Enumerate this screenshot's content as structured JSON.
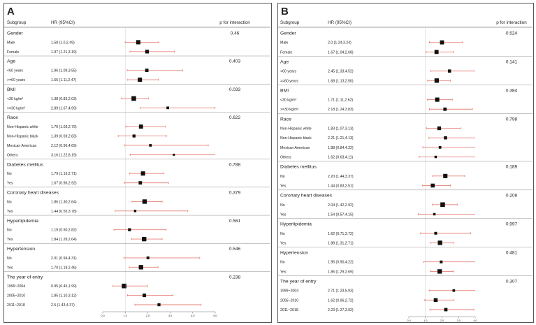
{
  "chart_data": [
    {
      "type": "forest",
      "panel_label": "A",
      "headers": {
        "subgroup": "Subgroup",
        "hr": "HR (95%CI)",
        "p": "p for interaction"
      },
      "x_ticks": [
        "0.0",
        "1.0",
        "2.0",
        "3.0",
        "4.0",
        "5.0"
      ],
      "xlim": [
        0,
        5
      ],
      "reference_line": 1.0,
      "groups": [
        {
          "title": "Gender",
          "p": "0.46",
          "rows": [
            {
              "label": "Male",
              "hr_text": "1.58 (1.0,2.49)",
              "hr": 1.58,
              "lo": 1.0,
              "hi": 2.49,
              "weight": 0.9
            },
            {
              "label": "Female",
              "hr_text": "1.97 (1.21,3.19)",
              "hr": 1.97,
              "lo": 1.21,
              "hi": 3.19,
              "weight": 0.75
            }
          ]
        },
        {
          "title": "Age",
          "p": "0.403",
          "rows": [
            {
              "label": "<60 years",
              "hr_text": "1.96 (1.09,3.55)",
              "hr": 1.96,
              "lo": 1.09,
              "hi": 3.55,
              "weight": 0.65
            },
            {
              "label": ">=60 years",
              "hr_text": "1.65 (1.11,2.47)",
              "hr": 1.65,
              "lo": 1.11,
              "hi": 2.47,
              "weight": 0.9
            }
          ]
        },
        {
          "title": "BMI",
          "p": "0.033",
          "rows": [
            {
              "label": "<30 kg/m²",
              "hr_text": "1.38 (0.83,2.03)",
              "hr": 1.38,
              "lo": 0.83,
              "hi": 2.03,
              "weight": 1.0
            },
            {
              "label": ">=30 kg/m²",
              "hr_text": "2.89 (1.67,4.99)",
              "hr": 2.89,
              "lo": 1.67,
              "hi": 4.99,
              "weight": 0.45
            }
          ]
        },
        {
          "title": "Race",
          "p": "0.622",
          "rows": [
            {
              "label": "Non-Hispanic white",
              "hr_text": "1.70 (1.03,2.79)",
              "hr": 1.7,
              "lo": 1.03,
              "hi": 2.79,
              "weight": 0.85
            },
            {
              "label": "Non-Hispanic black",
              "hr_text": "1.39 (0.69,2.83)",
              "hr": 1.39,
              "lo": 0.69,
              "hi": 2.83,
              "weight": 0.55
            },
            {
              "label": "Mexican American",
              "hr_text": "2.12 (0.96,4.69)",
              "hr": 2.12,
              "lo": 0.96,
              "hi": 4.69,
              "weight": 0.45
            },
            {
              "label": "Others",
              "hr_text": "3.16 (1.22,8.19)",
              "hr": 3.16,
              "lo": 1.22,
              "hi": 8.19,
              "weight": 0.3
            }
          ]
        },
        {
          "title": "Diabetes mellitus",
          "p": "0.788",
          "rows": [
            {
              "label": "No",
              "hr_text": "1.79 (1.19,2.71)",
              "hr": 1.79,
              "lo": 1.19,
              "hi": 2.71,
              "weight": 0.9
            },
            {
              "label": "Yes",
              "hr_text": "1.67 (0.96,2.92)",
              "hr": 1.67,
              "lo": 0.96,
              "hi": 2.92,
              "weight": 0.65
            }
          ]
        },
        {
          "title": "Coronary heart diseases",
          "p": "0.379",
          "rows": [
            {
              "label": "No",
              "hr_text": "1.86 (1.30,2.64)",
              "hr": 1.86,
              "lo": 1.3,
              "hi": 2.64,
              "weight": 0.95
            },
            {
              "label": "Yes",
              "hr_text": "1.44 (0.55,3.78)",
              "hr": 1.44,
              "lo": 0.55,
              "hi": 3.78,
              "weight": 0.4
            }
          ]
        },
        {
          "title": "Hyperlipidemia",
          "p": "0.561",
          "rows": [
            {
              "label": "No",
              "hr_text": "1.19 (0.50,2.82)",
              "hr": 1.19,
              "lo": 0.5,
              "hi": 2.82,
              "weight": 0.55
            },
            {
              "label": "Yes",
              "hr_text": "1.84 (1.28,2.64)",
              "hr": 1.84,
              "lo": 1.28,
              "hi": 2.64,
              "weight": 0.95
            }
          ]
        },
        {
          "title": "Hypertension",
          "p": "0.546",
          "rows": [
            {
              "label": "No",
              "hr_text": "2.01 (0.94,4.31)",
              "hr": 2.01,
              "lo": 0.94,
              "hi": 4.31,
              "weight": 0.5
            },
            {
              "label": "Yes",
              "hr_text": "1.70 (1.18,2.46)",
              "hr": 1.7,
              "lo": 1.18,
              "hi": 2.46,
              "weight": 0.95
            }
          ]
        },
        {
          "title": "The year of entry",
          "p": "0.238",
          "rows": [
            {
              "label": "1999~2004",
              "hr_text": "0.95 (0.45,1.99)",
              "hr": 0.95,
              "lo": 0.45,
              "hi": 1.99,
              "weight": 1.0
            },
            {
              "label": "2005~2010",
              "hr_text": "1.85 (1.10,3.12)",
              "hr": 1.85,
              "lo": 1.1,
              "hi": 3.12,
              "weight": 0.7
            },
            {
              "label": "2011~2018",
              "hr_text": "2.5 (1.43,4.37)",
              "hr": 2.5,
              "lo": 1.43,
              "hi": 4.37,
              "weight": 0.55
            }
          ]
        }
      ]
    },
    {
      "type": "forest",
      "panel_label": "B",
      "headers": {
        "subgroup": "Subgroup",
        "hr": "HR (95%CI)",
        "p": "p for interaction"
      },
      "x_ticks": [
        "0.0",
        "1.0",
        "2.0",
        "3.0",
        "4.0"
      ],
      "xlim": [
        0,
        4
      ],
      "reference_line": 1.0,
      "groups": [
        {
          "title": "Gender",
          "p": "0.524",
          "rows": [
            {
              "label": "Male",
              "hr_text": "2.0 (1.24,3.24)",
              "hr": 2.0,
              "lo": 1.24,
              "hi": 3.24,
              "weight": 0.85
            },
            {
              "label": "Female",
              "hr_text": "1.67 (1.04,2.68)",
              "hr": 1.67,
              "lo": 1.04,
              "hi": 2.68,
              "weight": 0.85
            }
          ]
        },
        {
          "title": "Age",
          "p": "0.141",
          "rows": [
            {
              "label": "<60 years",
              "hr_text": "2.45 (1.33,4.52)",
              "hr": 2.45,
              "lo": 1.33,
              "hi": 4.52,
              "weight": 0.6
            },
            {
              "label": ">=60 years",
              "hr_text": "1.68 (1.13,2.50)",
              "hr": 1.68,
              "lo": 1.13,
              "hi": 2.5,
              "weight": 0.95
            }
          ]
        },
        {
          "title": "BMI",
          "p": "0.384",
          "rows": [
            {
              "label": "<30 kg/m²",
              "hr_text": "1.71 (1.11,2.62)",
              "hr": 1.71,
              "lo": 1.11,
              "hi": 2.62,
              "weight": 0.9
            },
            {
              "label": ">=30 kg/m²",
              "hr_text": "2.18 (1.24,3.83)",
              "hr": 2.18,
              "lo": 1.24,
              "hi": 3.83,
              "weight": 0.65
            }
          ]
        },
        {
          "title": "Race",
          "p": "0.798",
          "rows": [
            {
              "label": "Non-Hispanic white",
              "hr_text": "1.83 (1.07,3.13)",
              "hr": 1.83,
              "lo": 1.07,
              "hi": 3.13,
              "weight": 0.75
            },
            {
              "label": "Non-Hispanic black",
              "hr_text": "2.21 (1.21,4.13)",
              "hr": 2.21,
              "lo": 1.21,
              "hi": 4.13,
              "weight": 0.6
            },
            {
              "label": "Mexican American",
              "hr_text": "1.88 (0.84,4.22)",
              "hr": 1.88,
              "lo": 0.84,
              "hi": 4.22,
              "weight": 0.45
            },
            {
              "label": "Others",
              "hr_text": "1.62 (0.63,4.11)",
              "hr": 1.62,
              "lo": 0.63,
              "hi": 4.11,
              "weight": 0.4
            }
          ]
        },
        {
          "title": "Diabetes mellitus",
          "p": "0.189",
          "rows": [
            {
              "label": "No",
              "hr_text": "2.20 (1.44,3.37)",
              "hr": 2.2,
              "lo": 1.44,
              "hi": 3.37,
              "weight": 0.9
            },
            {
              "label": "Yes",
              "hr_text": "1.44 (0.83,2.51)",
              "hr": 1.44,
              "lo": 0.83,
              "hi": 2.51,
              "weight": 0.8
            }
          ]
        },
        {
          "title": "Coronary heart diseases",
          "p": "0.208",
          "rows": [
            {
              "label": "No",
              "hr_text": "2.04 (1.42,2.92)",
              "hr": 2.04,
              "lo": 1.42,
              "hi": 2.92,
              "weight": 1.0
            },
            {
              "label": "Yes",
              "hr_text": "1.54 (0.57,4.15)",
              "hr": 1.54,
              "lo": 0.57,
              "hi": 4.15,
              "weight": 0.4
            }
          ]
        },
        {
          "title": "Hyperlipidemia",
          "p": "0.997",
          "rows": [
            {
              "label": "No",
              "hr_text": "1.62 (0.71,3.72)",
              "hr": 1.62,
              "lo": 0.71,
              "hi": 3.72,
              "weight": 0.5
            },
            {
              "label": "Yes",
              "hr_text": "1.88 (1.31,2.71)",
              "hr": 1.88,
              "lo": 1.31,
              "hi": 2.71,
              "weight": 0.95
            }
          ]
        },
        {
          "title": "Hypertension",
          "p": "0.481",
          "rows": [
            {
              "label": "No",
              "hr_text": "1.95 (0.90,4.22)",
              "hr": 1.95,
              "lo": 0.9,
              "hi": 4.22,
              "weight": 0.5
            },
            {
              "label": "Yes",
              "hr_text": "1.86 (1.29,2.69)",
              "hr": 1.86,
              "lo": 1.29,
              "hi": 2.69,
              "weight": 0.95
            }
          ]
        },
        {
          "title": "The year of entry",
          "p": "0.307",
          "rows": [
            {
              "label": "1999~2004",
              "hr_text": "2.71 (1.23,5.93)",
              "hr": 2.71,
              "lo": 1.23,
              "hi": 5.93,
              "weight": 0.45
            },
            {
              "label": "2005~2010",
              "hr_text": "1.62 (0.96,2.72)",
              "hr": 1.62,
              "lo": 0.96,
              "hi": 2.72,
              "weight": 0.8
            },
            {
              "label": "2011~2018",
              "hr_text": "2.23 (1.27,3.92)",
              "hr": 2.23,
              "lo": 1.27,
              "hi": 3.92,
              "weight": 0.65
            }
          ]
        }
      ]
    }
  ],
  "colors": {
    "ci_line": "#e8837a",
    "point": "#111111",
    "text": "#222222",
    "frame": "#555555",
    "axis": "#777777",
    "divider": "#444444"
  }
}
